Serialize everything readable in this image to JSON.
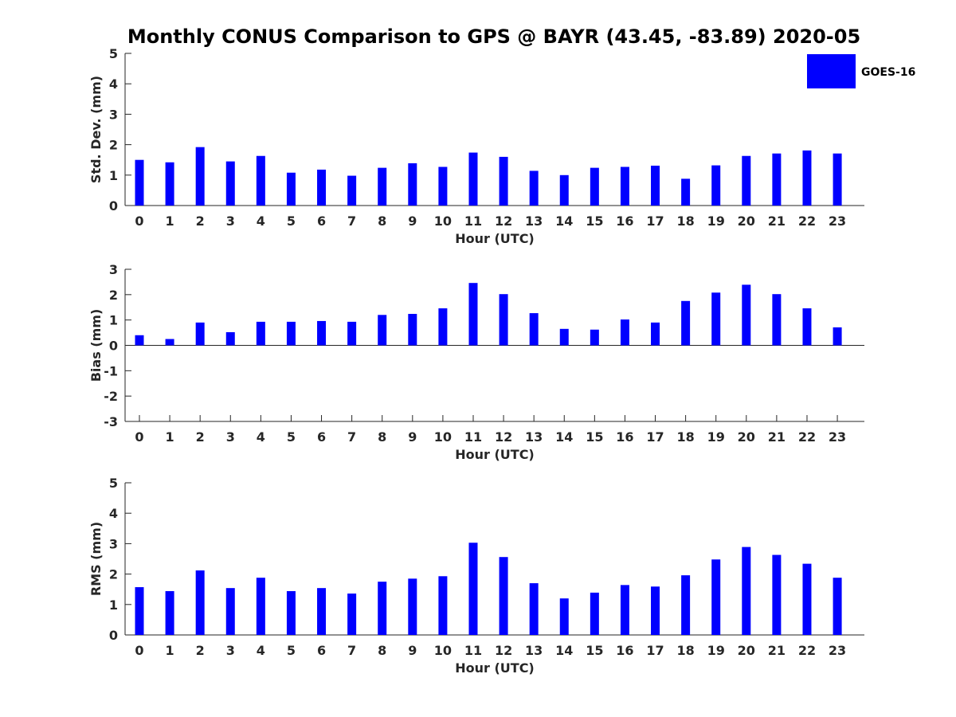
{
  "chart_data": {
    "title": "Monthly CONUS Comparison to GPS @ BAYR (43.45, -83.89) 2020-05",
    "legend": {
      "label": "GOES-16",
      "color": "#0000ff",
      "placement": "top-right"
    },
    "panels": [
      {
        "type": "bar",
        "name": "std-dev",
        "xlabel": "Hour (UTC)",
        "ylabel": "Std. Dev. (mm)",
        "ylim": [
          0,
          5
        ],
        "yticks": [
          "0",
          "1",
          "2",
          "3",
          "4",
          "5"
        ],
        "categories": [
          "0",
          "1",
          "2",
          "3",
          "4",
          "5",
          "6",
          "7",
          "8",
          "9",
          "10",
          "11",
          "12",
          "13",
          "14",
          "15",
          "16",
          "17",
          "18",
          "19",
          "20",
          "21",
          "22",
          "23"
        ],
        "series": [
          {
            "name": "GOES-16",
            "color": "#0000ff",
            "values": [
              1.5,
              1.42,
              1.92,
              1.45,
              1.63,
              1.08,
              1.18,
              0.98,
              1.24,
              1.39,
              1.27,
              1.74,
              1.6,
              1.14,
              1.0,
              1.24,
              1.27,
              1.31,
              0.88,
              1.32,
              1.63,
              1.71,
              1.81,
              1.71
            ]
          }
        ]
      },
      {
        "type": "bar",
        "name": "bias",
        "xlabel": "Hour (UTC)",
        "ylabel": "Bias (mm)",
        "ylim": [
          -3,
          3
        ],
        "yticks": [
          "-3",
          "-2",
          "-1",
          "0",
          "1",
          "2",
          "3"
        ],
        "categories": [
          "0",
          "1",
          "2",
          "3",
          "4",
          "5",
          "6",
          "7",
          "8",
          "9",
          "10",
          "11",
          "12",
          "13",
          "14",
          "15",
          "16",
          "17",
          "18",
          "19",
          "20",
          "21",
          "22",
          "23"
        ],
        "series": [
          {
            "name": "GOES-16",
            "color": "#0000ff",
            "values": [
              0.4,
              0.25,
              0.9,
              0.52,
              0.93,
              0.93,
              0.96,
              0.93,
              1.2,
              1.24,
              1.46,
              2.46,
              2.02,
              1.27,
              0.65,
              0.62,
              1.02,
              0.9,
              1.75,
              2.08,
              2.39,
              2.02,
              1.46,
              0.71
            ]
          }
        ]
      },
      {
        "type": "bar",
        "name": "rms",
        "xlabel": "Hour (UTC)",
        "ylabel": "RMS (mm)",
        "ylim": [
          0,
          5
        ],
        "yticks": [
          "0",
          "1",
          "2",
          "3",
          "4",
          "5"
        ],
        "categories": [
          "0",
          "1",
          "2",
          "3",
          "4",
          "5",
          "6",
          "7",
          "8",
          "9",
          "10",
          "11",
          "12",
          "13",
          "14",
          "15",
          "16",
          "17",
          "18",
          "19",
          "20",
          "21",
          "22",
          "23"
        ],
        "series": [
          {
            "name": "GOES-16",
            "color": "#0000ff",
            "values": [
              1.57,
              1.44,
              2.12,
              1.54,
              1.88,
              1.44,
              1.54,
              1.36,
              1.75,
              1.85,
              1.93,
              3.03,
              2.56,
              1.7,
              1.2,
              1.39,
              1.64,
              1.59,
              1.96,
              2.48,
              2.89,
              2.63,
              2.34,
              1.88
            ]
          }
        ]
      }
    ]
  }
}
